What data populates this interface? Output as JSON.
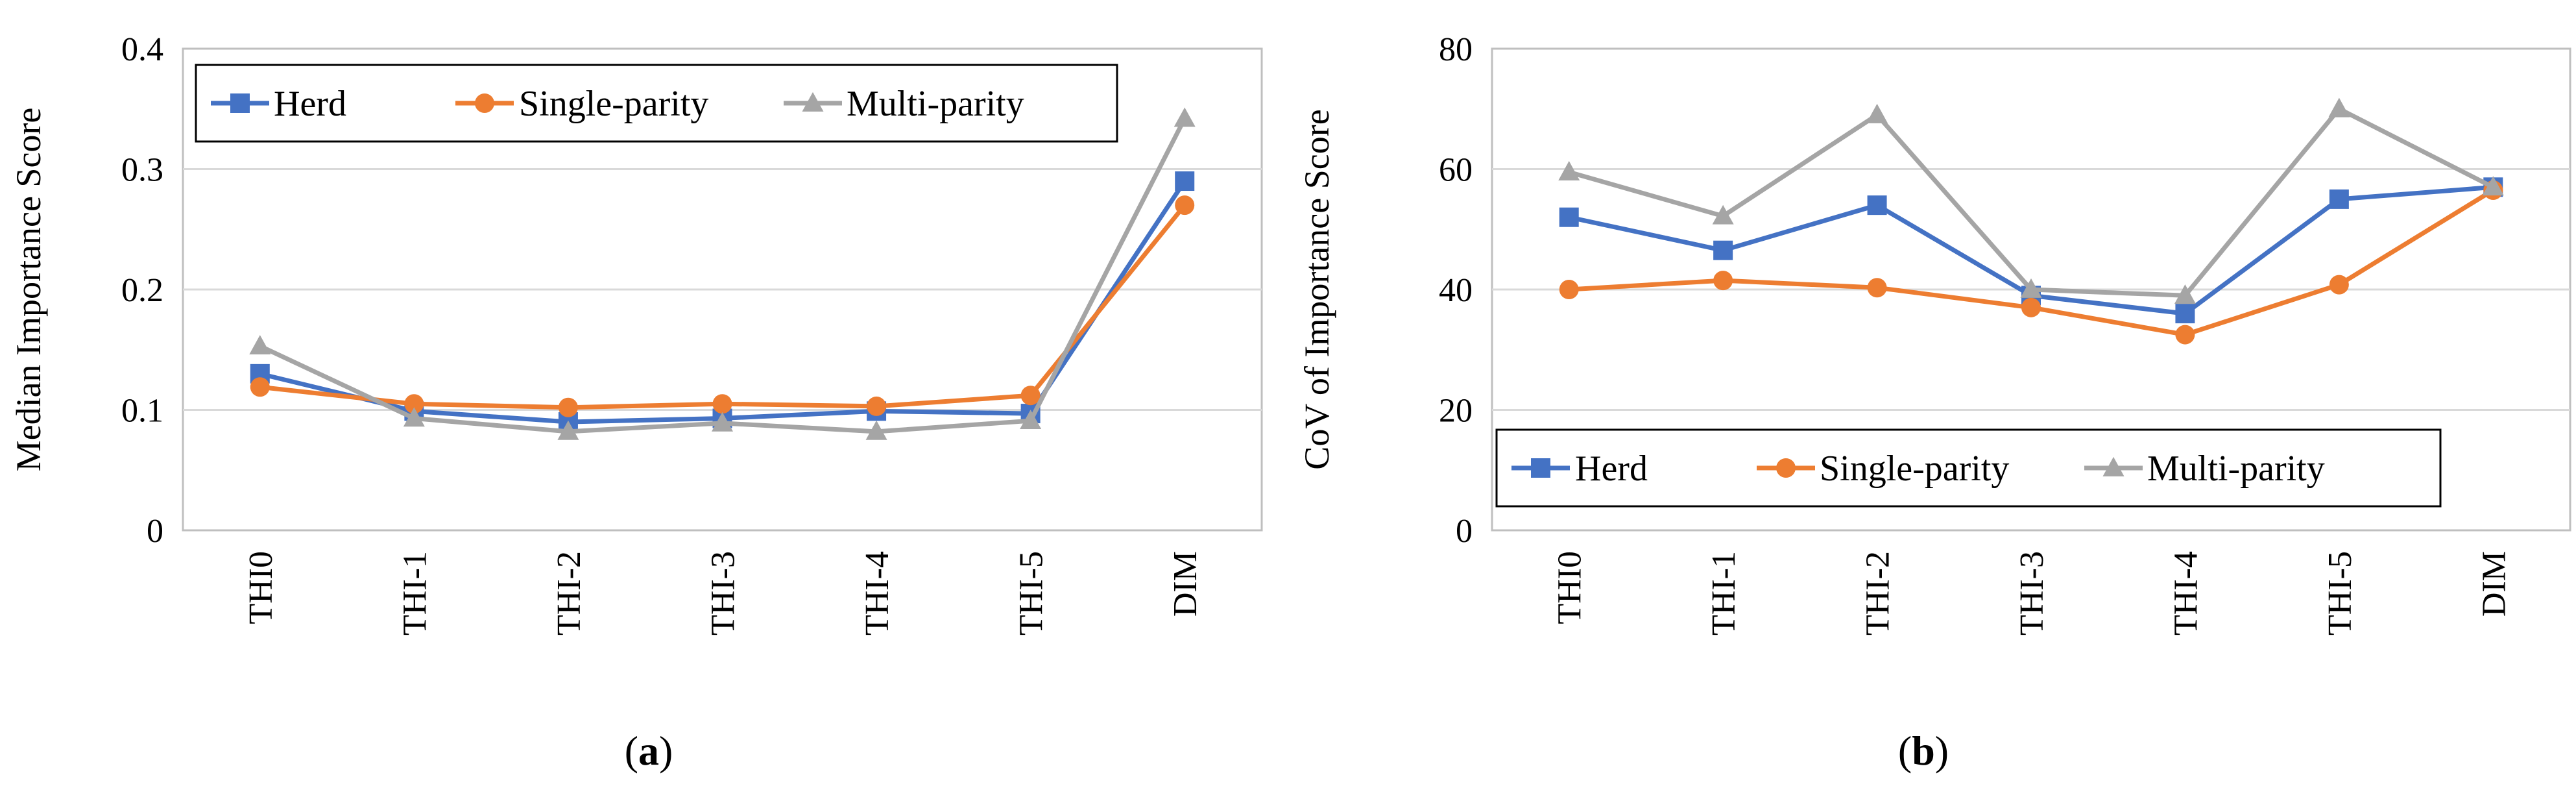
{
  "chart_data": [
    {
      "type": "line",
      "panel": "a",
      "caption_open": "(",
      "caption_letter": "a",
      "caption_close": ")",
      "title": "",
      "xlabel": "",
      "ylabel": "Median Importance Score",
      "categories": [
        "THI0",
        "THI-1",
        "THI-2",
        "THI-3",
        "THI-4",
        "THI-5",
        "DIM"
      ],
      "ylim": [
        0,
        0.4
      ],
      "yticks": [
        0,
        0.1,
        0.2,
        0.3,
        0.4
      ],
      "ytick_labels": [
        "0",
        "0.1",
        "0.2",
        "0.3",
        "0.4"
      ],
      "grid": true,
      "legend_position": "top",
      "series": [
        {
          "name": "Herd",
          "marker": "square",
          "color": "#4472C4",
          "values": [
            0.13,
            0.099,
            0.09,
            0.093,
            0.099,
            0.097,
            0.29
          ]
        },
        {
          "name": "Single-parity",
          "marker": "circle",
          "color": "#ED7D31",
          "values": [
            0.119,
            0.105,
            0.102,
            0.105,
            0.103,
            0.112,
            0.27
          ]
        },
        {
          "name": "Multi-parity",
          "marker": "triangle",
          "color": "#A5A5A5",
          "values": [
            0.153,
            0.093,
            0.082,
            0.089,
            0.082,
            0.091,
            0.342
          ]
        }
      ]
    },
    {
      "type": "line",
      "panel": "b",
      "caption_open": "(",
      "caption_letter": "b",
      "caption_close": ")",
      "title": "",
      "xlabel": "",
      "ylabel": "CoV of Importance Score",
      "categories": [
        "THI0",
        "THI-1",
        "THI-2",
        "THI-3",
        "THI-4",
        "THI-5",
        "DIM"
      ],
      "ylim": [
        0,
        80
      ],
      "yticks": [
        0,
        20,
        40,
        60,
        80
      ],
      "ytick_labels": [
        "0",
        "20",
        "40",
        "60",
        "80"
      ],
      "grid": true,
      "legend_position": "bottom",
      "series": [
        {
          "name": "Herd",
          "marker": "square",
          "color": "#4472C4",
          "values": [
            52,
            46.5,
            54,
            39,
            36,
            55,
            57
          ]
        },
        {
          "name": "Single-parity",
          "marker": "circle",
          "color": "#ED7D31",
          "values": [
            40,
            41.5,
            40.3,
            37,
            32.5,
            40.8,
            56.5
          ]
        },
        {
          "name": "Multi-parity",
          "marker": "triangle",
          "color": "#A5A5A5",
          "values": [
            59.5,
            52.2,
            69,
            40,
            39,
            70,
            57
          ]
        }
      ]
    }
  ]
}
